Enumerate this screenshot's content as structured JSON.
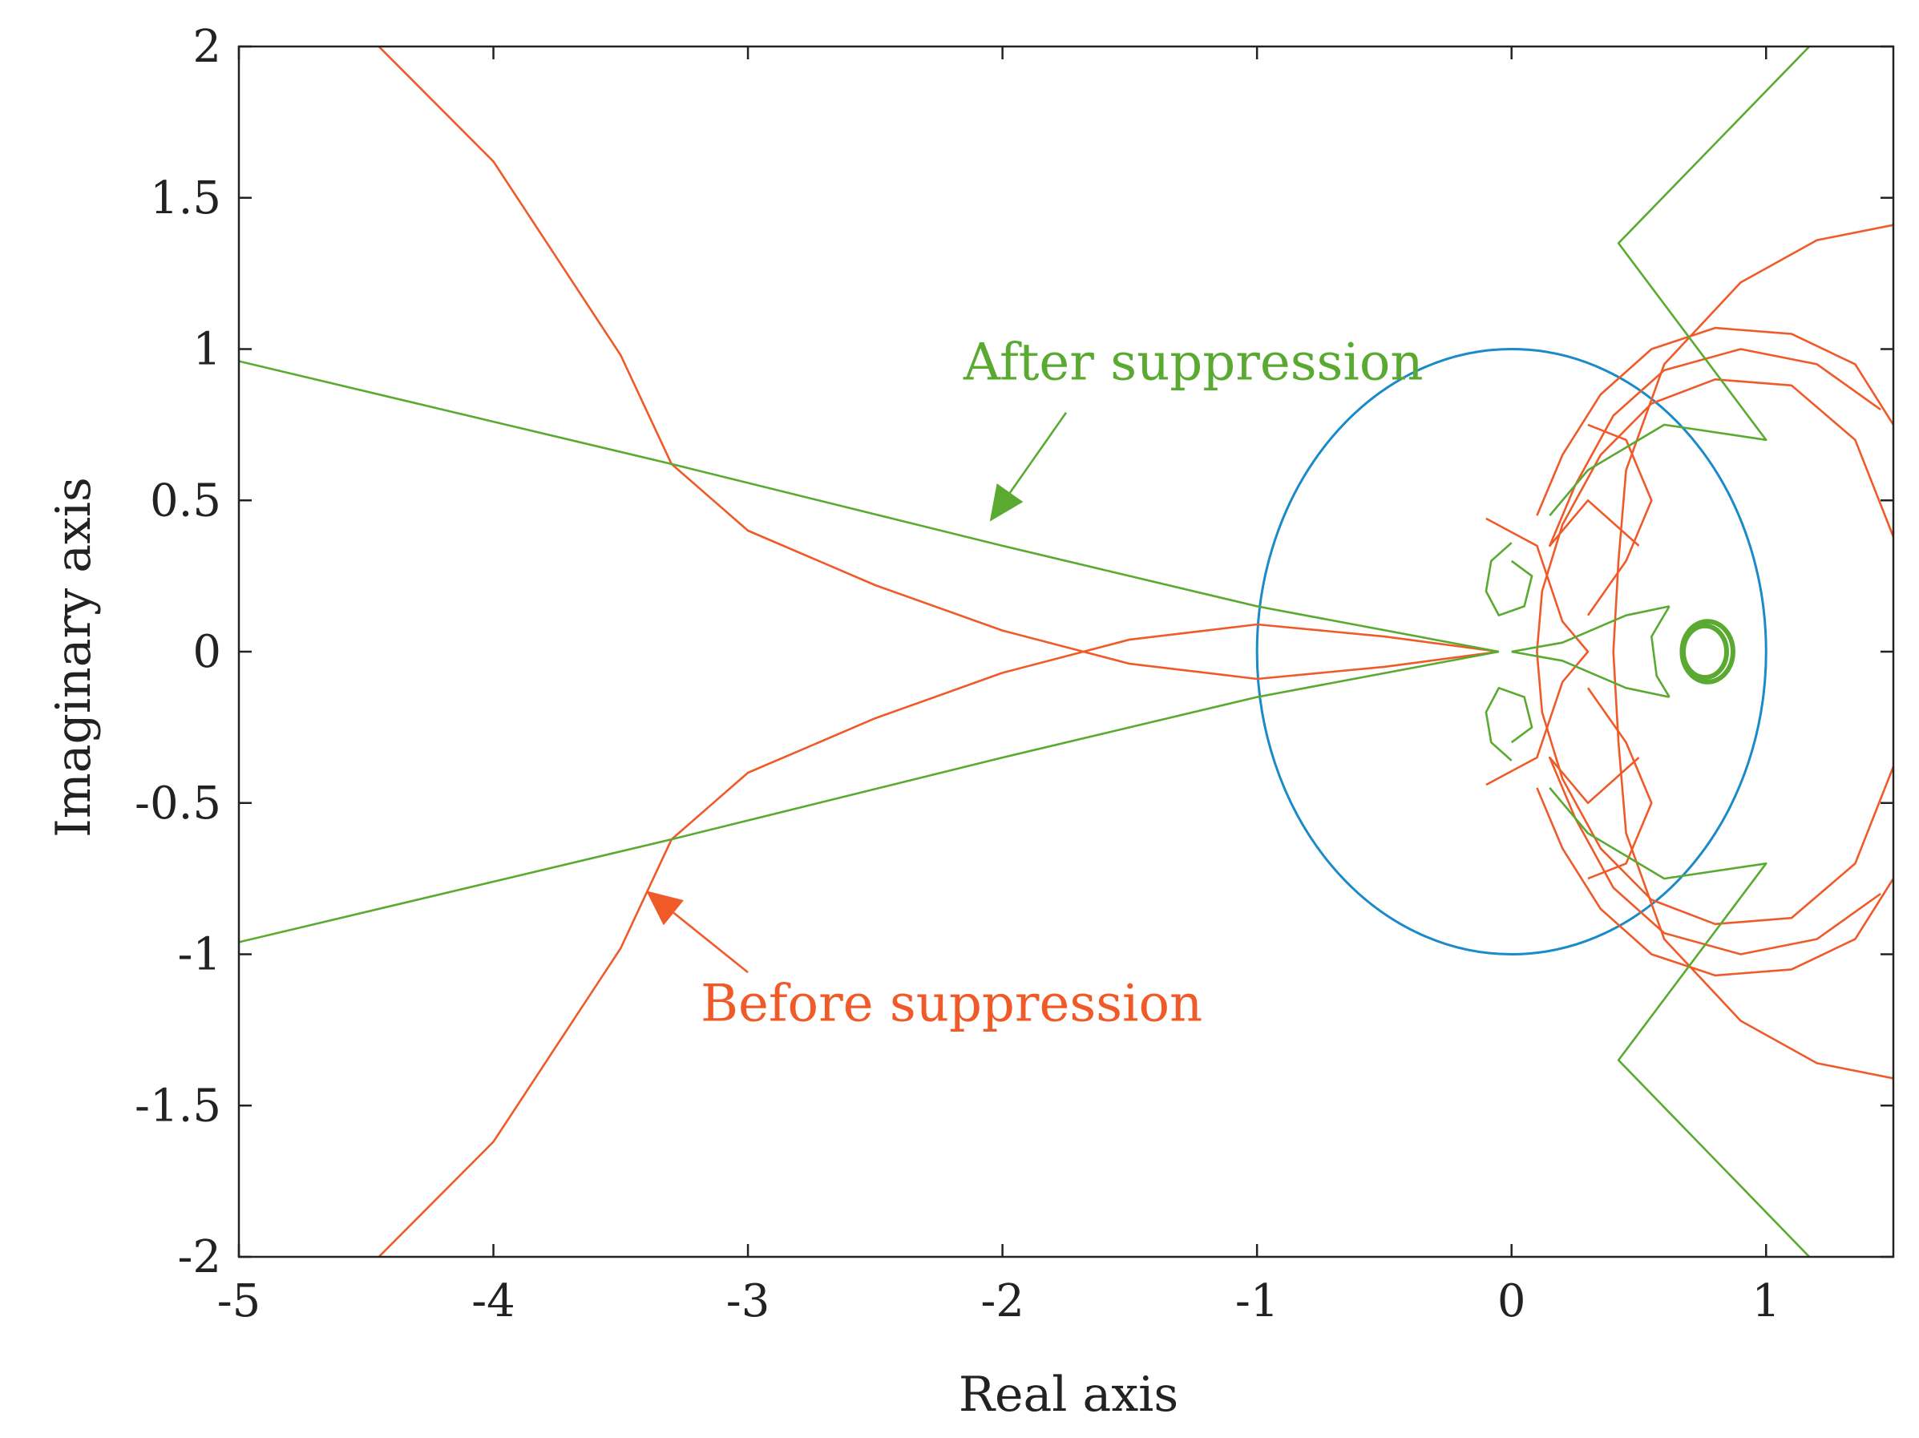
{
  "chart_data": {
    "type": "line",
    "xlabel": "Real axis",
    "ylabel": "Imaginary axis",
    "xlim": [
      -5,
      1.5
    ],
    "ylim": [
      -2,
      2
    ],
    "x_ticks": [
      -5,
      -4,
      -3,
      -2,
      -1,
      0,
      1
    ],
    "x_tick_labels": [
      "-5",
      "-4",
      "-3",
      "-2",
      "-1",
      "0",
      "1"
    ],
    "y_ticks": [
      2,
      1.5,
      1,
      0.5,
      0,
      -0.5,
      -1,
      -1.5,
      -2
    ],
    "y_tick_labels": [
      "2",
      "1.5",
      "1",
      "0.5",
      "0",
      "-0.5",
      "-1",
      "-1.5",
      "-2"
    ],
    "grid": false,
    "colors": {
      "unit_circle": "#1a8ac8",
      "before": "#f05a28",
      "after": "#5aaa32",
      "axes": "#222222"
    },
    "unit_circle": {
      "center": [
        0,
        0
      ],
      "radius": 1
    },
    "series": [
      {
        "id": "before",
        "color": "#f05a28",
        "paths": [
          [
            [
              -4.45,
              2.0
            ],
            [
              -4.0,
              1.62
            ],
            [
              -3.5,
              0.98
            ],
            [
              -3.3,
              0.62
            ],
            [
              -3.0,
              0.4
            ],
            [
              -2.5,
              0.22
            ],
            [
              -2.0,
              0.07
            ],
            [
              -1.5,
              -0.04
            ],
            [
              -1.0,
              -0.09
            ],
            [
              -0.5,
              -0.05
            ],
            [
              -0.05,
              0.0
            ]
          ],
          [
            [
              -4.45,
              -2.0
            ],
            [
              -4.0,
              -1.62
            ],
            [
              -3.5,
              -0.98
            ],
            [
              -3.3,
              -0.62
            ],
            [
              -3.0,
              -0.4
            ],
            [
              -2.5,
              -0.22
            ],
            [
              -2.0,
              -0.07
            ],
            [
              -1.5,
              0.04
            ],
            [
              -1.0,
              0.09
            ],
            [
              -0.5,
              0.05
            ],
            [
              -0.05,
              0.0
            ]
          ],
          [
            [
              1.5,
              1.41
            ],
            [
              1.2,
              1.36
            ],
            [
              0.9,
              1.22
            ],
            [
              0.6,
              0.95
            ],
            [
              0.45,
              0.6
            ],
            [
              0.42,
              0.3
            ],
            [
              0.4,
              0.0
            ],
            [
              0.42,
              -0.3
            ],
            [
              0.45,
              -0.6
            ],
            [
              0.6,
              -0.95
            ],
            [
              0.9,
              -1.22
            ],
            [
              1.2,
              -1.36
            ],
            [
              1.5,
              -1.41
            ]
          ],
          [
            [
              1.5,
              0.75
            ],
            [
              1.35,
              0.95
            ],
            [
              1.1,
              1.05
            ],
            [
              0.8,
              1.07
            ],
            [
              0.55,
              1.0
            ],
            [
              0.35,
              0.85
            ],
            [
              0.2,
              0.65
            ],
            [
              0.1,
              0.45
            ]
          ],
          [
            [
              1.5,
              -0.75
            ],
            [
              1.35,
              -0.95
            ],
            [
              1.1,
              -1.05
            ],
            [
              0.8,
              -1.07
            ],
            [
              0.55,
              -1.0
            ],
            [
              0.35,
              -0.85
            ],
            [
              0.2,
              -0.65
            ],
            [
              0.1,
              -0.45
            ]
          ],
          [
            [
              1.5,
              0.38
            ],
            [
              1.35,
              0.7
            ],
            [
              1.1,
              0.88
            ],
            [
              0.8,
              0.9
            ],
            [
              0.55,
              0.82
            ],
            [
              0.35,
              0.65
            ],
            [
              0.2,
              0.42
            ],
            [
              0.12,
              0.2
            ],
            [
              0.1,
              0.0
            ],
            [
              0.12,
              -0.2
            ],
            [
              0.2,
              -0.42
            ],
            [
              0.35,
              -0.65
            ],
            [
              0.55,
              -0.82
            ],
            [
              0.8,
              -0.9
            ],
            [
              1.1,
              -0.88
            ],
            [
              1.35,
              -0.7
            ],
            [
              1.5,
              -0.38
            ]
          ],
          [
            [
              1.45,
              0.8
            ],
            [
              1.2,
              0.95
            ],
            [
              0.9,
              1.0
            ],
            [
              0.6,
              0.93
            ],
            [
              0.4,
              0.78
            ],
            [
              0.25,
              0.55
            ],
            [
              0.15,
              0.35
            ],
            [
              0.3,
              0.5
            ],
            [
              0.5,
              0.35
            ]
          ],
          [
            [
              1.45,
              -0.8
            ],
            [
              1.2,
              -0.95
            ],
            [
              0.9,
              -1.0
            ],
            [
              0.6,
              -0.93
            ],
            [
              0.4,
              -0.78
            ],
            [
              0.25,
              -0.55
            ],
            [
              0.15,
              -0.35
            ],
            [
              0.3,
              -0.5
            ],
            [
              0.5,
              -0.35
            ]
          ],
          [
            [
              -0.1,
              0.44
            ],
            [
              0.1,
              0.35
            ],
            [
              0.2,
              0.1
            ],
            [
              0.3,
              0.0
            ],
            [
              0.2,
              -0.1
            ],
            [
              0.1,
              -0.35
            ],
            [
              -0.1,
              -0.44
            ]
          ],
          [
            [
              0.3,
              0.12
            ],
            [
              0.45,
              0.3
            ],
            [
              0.55,
              0.5
            ],
            [
              0.45,
              0.7
            ],
            [
              0.3,
              0.75
            ]
          ],
          [
            [
              0.3,
              -0.12
            ],
            [
              0.45,
              -0.3
            ],
            [
              0.55,
              -0.5
            ],
            [
              0.45,
              -0.7
            ],
            [
              0.3,
              -0.75
            ]
          ]
        ]
      },
      {
        "id": "after",
        "color": "#5aaa32",
        "paths": [
          [
            [
              -5.0,
              0.96
            ],
            [
              -3.3,
              0.62
            ],
            [
              -2.0,
              0.35
            ],
            [
              -1.0,
              0.15
            ],
            [
              -0.05,
              0.0
            ]
          ],
          [
            [
              -5.0,
              -0.96
            ],
            [
              -3.3,
              -0.62
            ],
            [
              -2.0,
              -0.35
            ],
            [
              -1.0,
              -0.15
            ],
            [
              -0.05,
              0.0
            ]
          ],
          [
            [
              1.17,
              2.0
            ],
            [
              0.42,
              1.35
            ],
            [
              1.0,
              0.7
            ],
            [
              0.6,
              0.75
            ],
            [
              0.3,
              0.6
            ],
            [
              0.15,
              0.45
            ]
          ],
          [
            [
              1.17,
              -2.0
            ],
            [
              0.42,
              -1.35
            ],
            [
              1.0,
              -0.7
            ],
            [
              0.6,
              -0.75
            ],
            [
              0.3,
              -0.6
            ],
            [
              0.15,
              -0.45
            ]
          ],
          [
            [
              0.0,
              0.36
            ],
            [
              -0.08,
              0.3
            ],
            [
              -0.1,
              0.2
            ],
            [
              -0.05,
              0.12
            ],
            [
              0.05,
              0.15
            ],
            [
              0.08,
              0.25
            ],
            [
              0.0,
              0.3
            ]
          ],
          [
            [
              0.0,
              -0.36
            ],
            [
              -0.08,
              -0.3
            ],
            [
              -0.1,
              -0.2
            ],
            [
              -0.05,
              -0.12
            ],
            [
              0.05,
              -0.15
            ],
            [
              0.08,
              -0.25
            ],
            [
              0.0,
              -0.3
            ]
          ],
          [
            [
              0.0,
              0.0
            ],
            [
              0.2,
              0.03
            ],
            [
              0.45,
              0.12
            ],
            [
              0.62,
              0.15
            ]
          ],
          [
            [
              0.0,
              0.0
            ],
            [
              0.2,
              -0.03
            ],
            [
              0.45,
              -0.12
            ],
            [
              0.62,
              -0.15
            ]
          ],
          [
            [
              0.62,
              0.15
            ],
            [
              0.55,
              0.05
            ],
            [
              0.57,
              -0.08
            ],
            [
              0.62,
              -0.15
            ]
          ]
        ],
        "ellipses": [
          {
            "center": [
              0.77,
              0.0
            ],
            "rx": 0.1,
            "ry": 0.1
          },
          {
            "center": [
              0.76,
              0.0
            ],
            "rx": 0.085,
            "ry": 0.085
          }
        ]
      }
    ],
    "annotations": [
      {
        "text": "After suppression",
        "color": "#5aaa32",
        "label_pos": [
          -1.25,
          0.9
        ],
        "arrow_from": [
          -1.75,
          0.79
        ],
        "arrow_to": [
          -2.05,
          0.43
        ]
      },
      {
        "text": "Before suppression",
        "color": "#f05a28",
        "label_pos": [
          -2.2,
          -1.22
        ],
        "arrow_from": [
          -3.0,
          -1.06
        ],
        "arrow_to": [
          -3.4,
          -0.79
        ]
      }
    ]
  }
}
